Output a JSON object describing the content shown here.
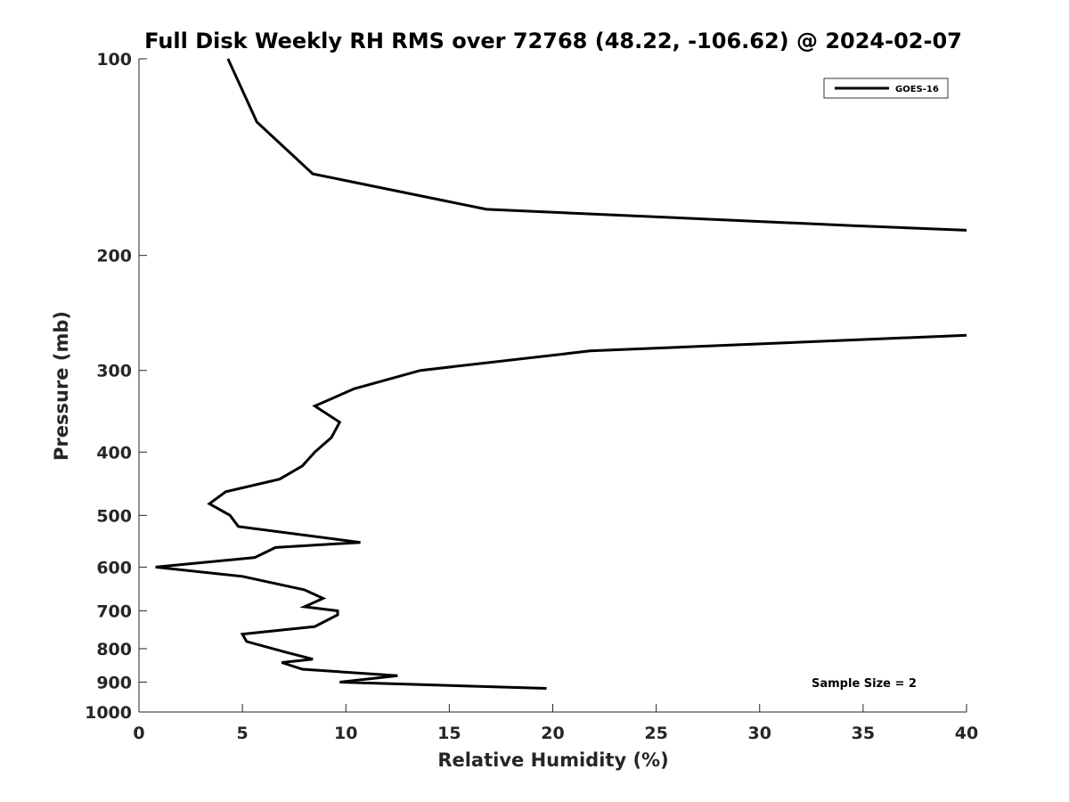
{
  "chart_data": {
    "type": "line",
    "title": "Full Disk Weekly RH RMS over 72768 (48.22, -106.62) @ 2024-02-07",
    "xlabel": "Relative Humidity (%)",
    "ylabel": "Pressure (mb)",
    "xlim": [
      0,
      40
    ],
    "ylim": [
      100,
      1000
    ],
    "yscale": "log",
    "y_reversed": true,
    "xticks": [
      "0",
      "5",
      "10",
      "15",
      "20",
      "25",
      "30",
      "35",
      "40"
    ],
    "yticks": [
      "100",
      "200",
      "300",
      "400",
      "500",
      "600",
      "700",
      "800",
      "900",
      "1000"
    ],
    "grid": false,
    "legend_placement": "top-right",
    "annotation": "Sample Size = 2",
    "series": [
      {
        "name": "GOES-16",
        "color": "#000000",
        "segments": [
          {
            "x": [
              4.3,
              5.7,
              8.4,
              16.8,
              34.4,
              40.0
            ],
            "y": [
              100,
              125,
              150,
              170,
              180,
              183
            ]
          },
          {
            "x": [
              40.0,
              21.8,
              13.6,
              10.4,
              8.5,
              9.7,
              9.3,
              8.5,
              7.9,
              6.8,
              4.2,
              3.4,
              4.4,
              4.8,
              10.7,
              6.6,
              5.6,
              0.8,
              5.0,
              8.0,
              8.9,
              8.0,
              9.6,
              9.6,
              8.5,
              5.0,
              5.2,
              7.1,
              8.4,
              6.9,
              7.9,
              12.5,
              9.7,
              19.7
            ],
            "y": [
              265,
              280,
              300,
              320,
              340,
              360,
              380,
              400,
              420,
              440,
              460,
              480,
              500,
              520,
              550,
              560,
              580,
              600,
              620,
              650,
              670,
              690,
              700,
              710,
              740,
              760,
              780,
              810,
              830,
              840,
              860,
              880,
              900,
              920
            ]
          }
        ]
      }
    ]
  }
}
